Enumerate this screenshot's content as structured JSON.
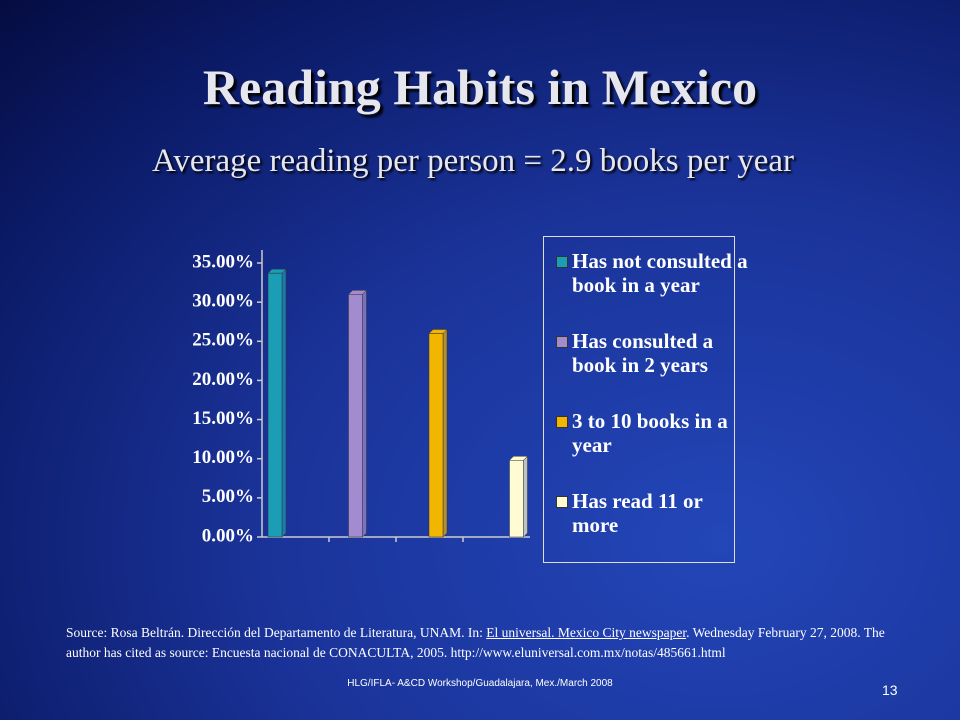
{
  "chart_data": {
    "type": "bar",
    "title": "Reading Habits in Mexico",
    "subtitle": "Average reading per person = 2.9 books per year",
    "categories": [
      "Has not consulted a book in a year",
      "Has consulted a book in 2 years",
      "3 to 10 books in a year",
      "Has read 11 or more"
    ],
    "values": [
      33.7,
      31.0,
      26.0,
      9.8
    ],
    "colors": [
      "#1b9db6",
      "#a38bd0",
      "#f2b500",
      "#fffbd2"
    ],
    "ylim": [
      0,
      35
    ],
    "yticks": [
      {
        "value": 0,
        "label": "0.00%"
      },
      {
        "value": 5,
        "label": "5.00%"
      },
      {
        "value": 10,
        "label": "10.00%"
      },
      {
        "value": 15,
        "label": "15.00%"
      },
      {
        "value": 20,
        "label": "20.00%"
      },
      {
        "value": 25,
        "label": "25.00%"
      },
      {
        "value": 30,
        "label": "30.00%"
      },
      {
        "value": 35,
        "label": "35.00%"
      }
    ],
    "legend": "right"
  },
  "source": {
    "before": "Source: Rosa Beltrán. Dirección del Departamento de Literatura, UNAM. In: ",
    "link": "El universal. Mexico City newspaper",
    "after": ". Wednesday February 27, 2008. The author has cited as source:  Encuesta nacional de CONACULTA, 2005. http://www.eluniversal.com.mx/notas/485661.html"
  },
  "footer": "HLG/IFLA- A&CD Workshop/Guadalajara, Mex./March 2008",
  "page_number": "13"
}
